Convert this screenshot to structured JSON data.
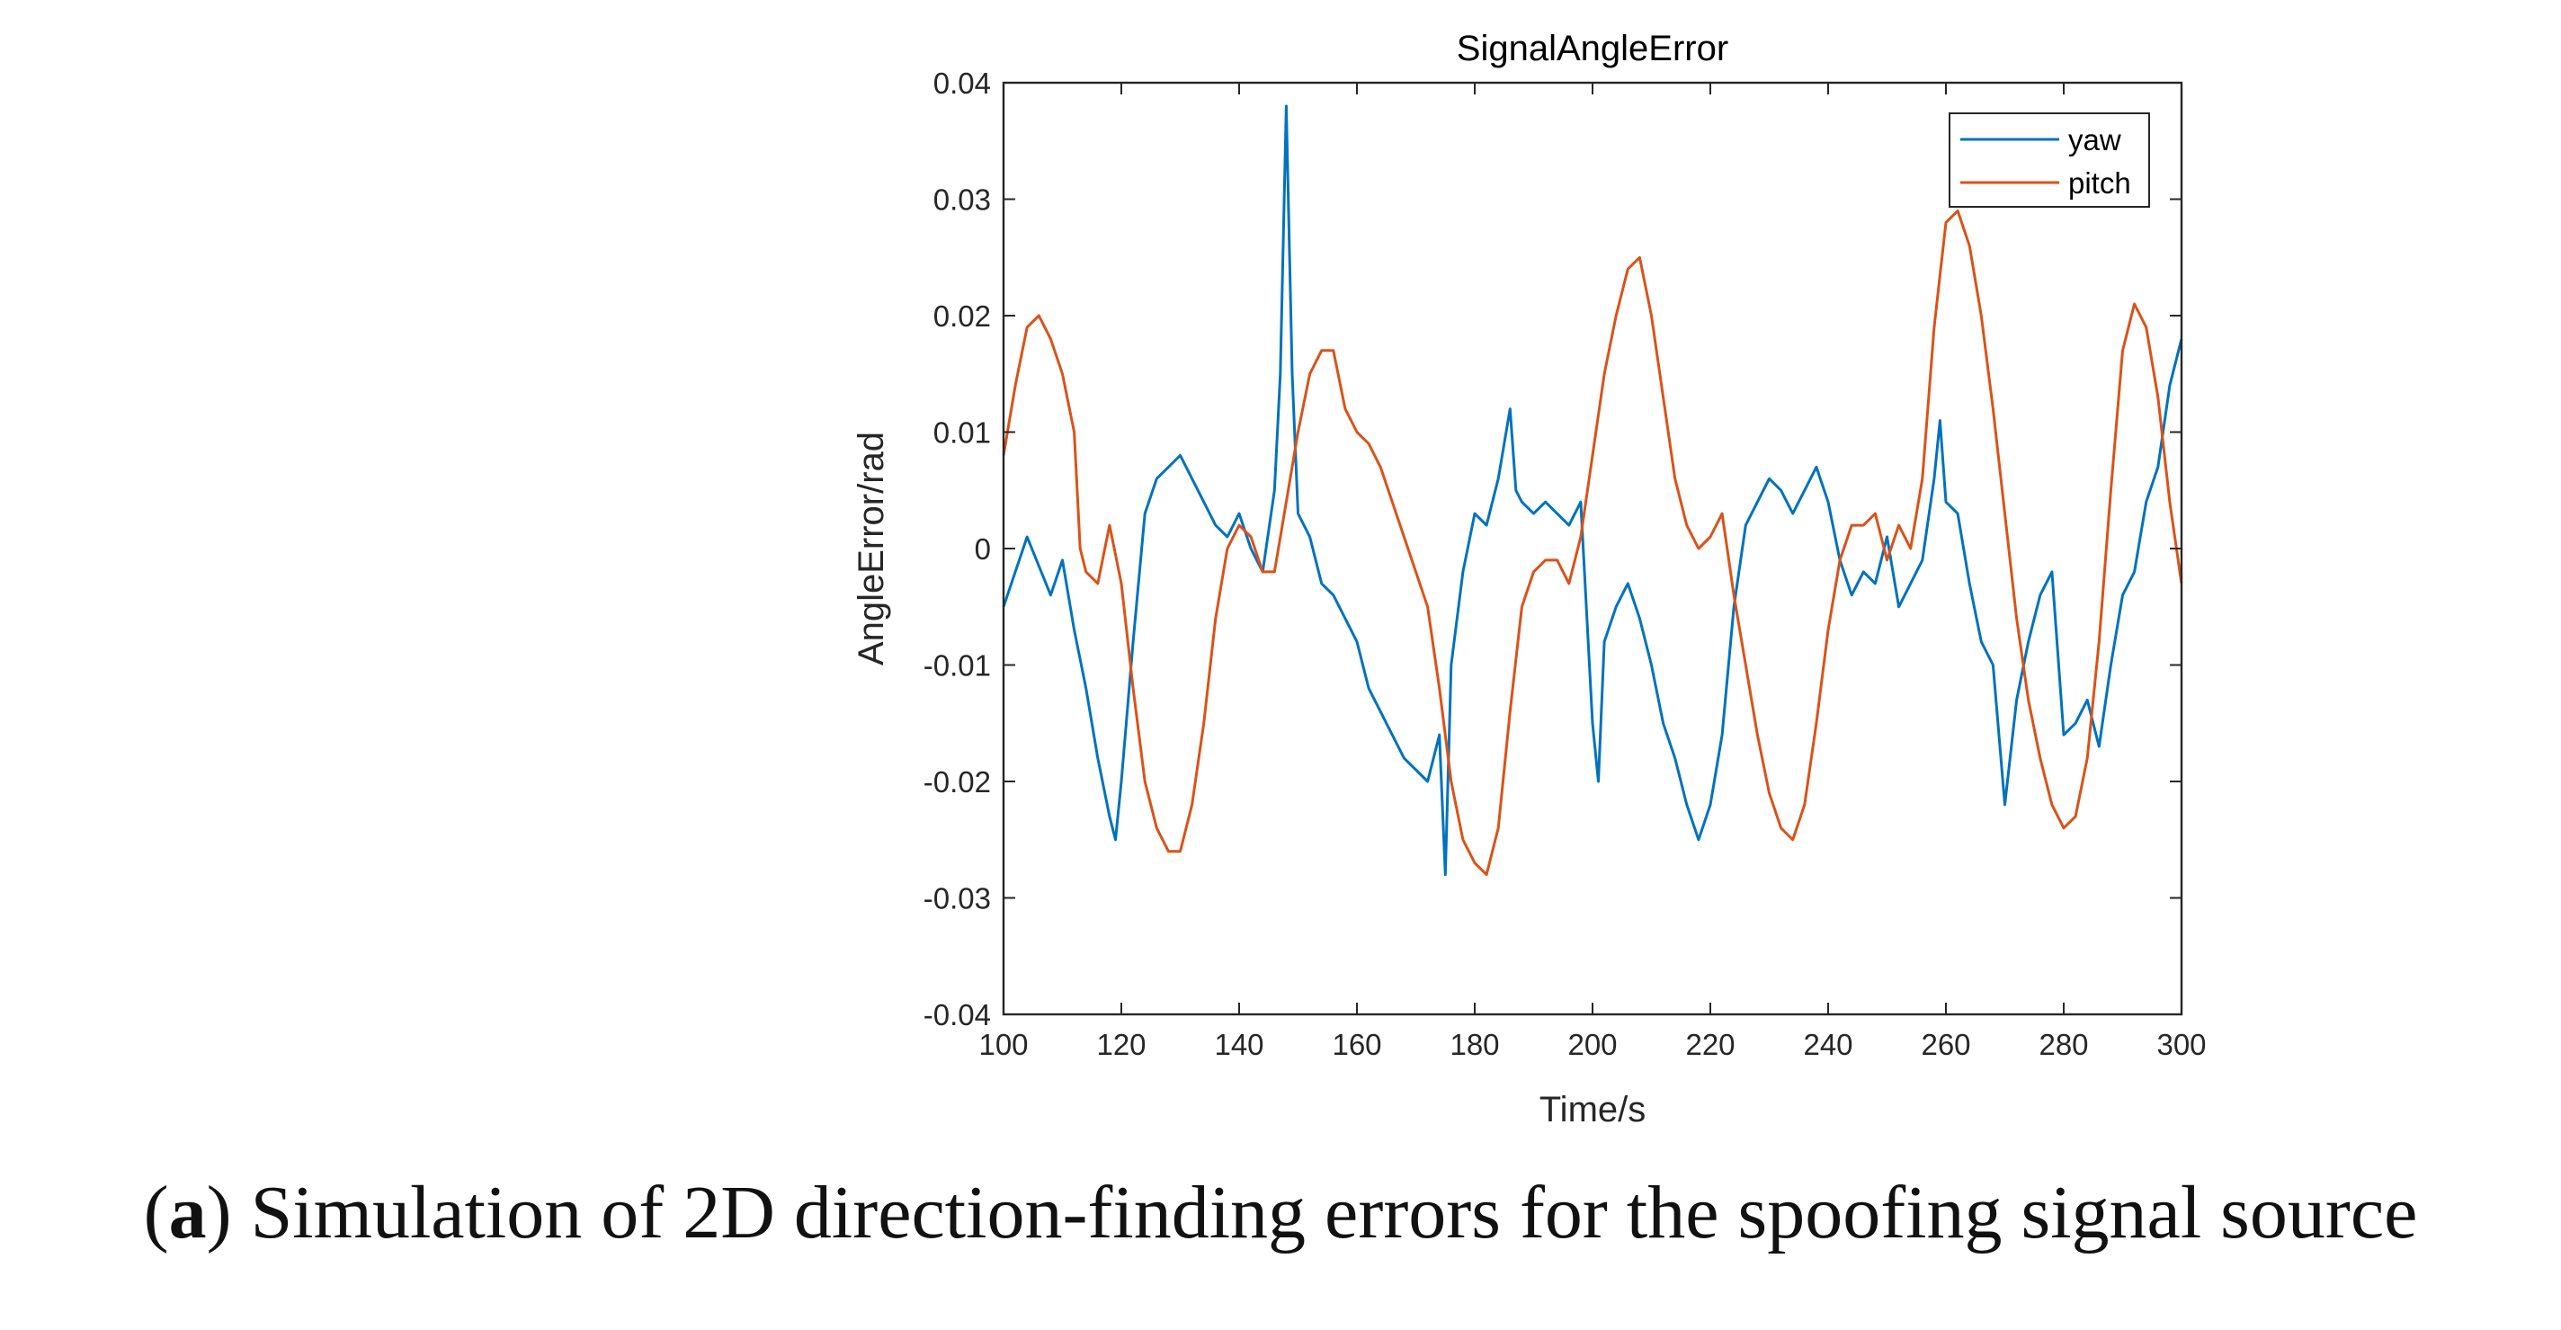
{
  "chart_data": {
    "type": "line",
    "title": "SignalAngleError",
    "xlabel": "Time/s",
    "ylabel": "AngleError/rad",
    "xlim": [
      100,
      300
    ],
    "ylim": [
      -0.04,
      0.04
    ],
    "x_ticks": [
      100,
      120,
      140,
      160,
      180,
      200,
      220,
      240,
      260,
      280,
      300
    ],
    "y_ticks": [
      -0.04,
      -0.03,
      -0.02,
      -0.01,
      0,
      0.01,
      0.02,
      0.03,
      0.04
    ],
    "x_tick_labels": [
      "100",
      "120",
      "140",
      "160",
      "180",
      "200",
      "220",
      "240",
      "260",
      "280",
      "300"
    ],
    "y_tick_labels": [
      "-0.04",
      "-0.03",
      "-0.02",
      "-0.01",
      "0",
      "0.01",
      "0.02",
      "0.03",
      "0.04"
    ],
    "grid": false,
    "legend_position": "top-right",
    "series": [
      {
        "name": "yaw",
        "color": "#0072BD",
        "x": [
          100,
          104,
          108,
          110,
          112,
          114,
          116,
          118,
          119,
          120,
          122,
          124,
          126,
          128,
          130,
          132,
          134,
          136,
          138,
          140,
          142,
          144,
          146,
          147,
          148,
          149,
          150,
          152,
          154,
          156,
          158,
          160,
          162,
          164,
          166,
          168,
          170,
          172,
          174,
          175,
          176,
          178,
          180,
          182,
          184,
          186,
          187,
          188,
          190,
          192,
          194,
          196,
          198,
          200,
          201,
          202,
          204,
          206,
          208,
          210,
          212,
          214,
          216,
          218,
          220,
          222,
          224,
          226,
          228,
          230,
          232,
          234,
          236,
          238,
          240,
          242,
          244,
          246,
          248,
          250,
          252,
          254,
          256,
          258,
          259,
          260,
          262,
          264,
          266,
          268,
          270,
          272,
          274,
          276,
          278,
          280,
          282,
          284,
          286,
          288,
          290,
          292,
          294,
          296,
          298,
          300
        ],
        "y": [
          -0.005,
          0.001,
          -0.004,
          -0.001,
          -0.007,
          -0.012,
          -0.018,
          -0.023,
          -0.025,
          -0.02,
          -0.008,
          0.003,
          0.006,
          0.007,
          0.008,
          0.006,
          0.004,
          0.002,
          0.001,
          0.003,
          0.0,
          -0.002,
          0.005,
          0.015,
          0.038,
          0.015,
          0.003,
          0.001,
          -0.003,
          -0.004,
          -0.006,
          -0.008,
          -0.012,
          -0.014,
          -0.016,
          -0.018,
          -0.019,
          -0.02,
          -0.016,
          -0.028,
          -0.01,
          -0.002,
          0.003,
          0.002,
          0.006,
          0.012,
          0.005,
          0.004,
          0.003,
          0.004,
          0.003,
          0.002,
          0.004,
          -0.015,
          -0.02,
          -0.008,
          -0.005,
          -0.003,
          -0.006,
          -0.01,
          -0.015,
          -0.018,
          -0.022,
          -0.025,
          -0.022,
          -0.016,
          -0.005,
          0.002,
          0.004,
          0.006,
          0.005,
          0.003,
          0.005,
          0.007,
          0.004,
          -0.001,
          -0.004,
          -0.002,
          -0.003,
          0.001,
          -0.005,
          -0.003,
          -0.001,
          0.006,
          0.011,
          0.004,
          0.003,
          -0.003,
          -0.008,
          -0.01,
          -0.022,
          -0.013,
          -0.008,
          -0.004,
          -0.002,
          -0.016,
          -0.015,
          -0.013,
          -0.017,
          -0.01,
          -0.004,
          -0.002,
          0.004,
          0.007,
          0.014,
          0.018
        ]
      },
      {
        "name": "pitch",
        "color": "#D95319",
        "x": [
          100,
          102,
          104,
          106,
          108,
          110,
          112,
          113,
          114,
          116,
          118,
          120,
          122,
          124,
          126,
          128,
          130,
          132,
          134,
          136,
          138,
          140,
          142,
          144,
          146,
          148,
          150,
          152,
          154,
          156,
          158,
          160,
          162,
          164,
          166,
          168,
          170,
          172,
          174,
          176,
          178,
          180,
          182,
          184,
          186,
          188,
          190,
          192,
          194,
          196,
          198,
          200,
          202,
          204,
          206,
          208,
          210,
          212,
          214,
          216,
          218,
          220,
          222,
          224,
          226,
          228,
          230,
          232,
          234,
          236,
          238,
          240,
          242,
          244,
          246,
          248,
          250,
          252,
          254,
          256,
          258,
          260,
          262,
          264,
          266,
          268,
          270,
          272,
          274,
          276,
          278,
          280,
          282,
          284,
          286,
          288,
          290,
          292,
          294,
          296,
          298,
          300
        ],
        "y": [
          0.008,
          0.014,
          0.019,
          0.02,
          0.018,
          0.015,
          0.01,
          0.0,
          -0.002,
          -0.003,
          0.002,
          -0.003,
          -0.012,
          -0.02,
          -0.024,
          -0.026,
          -0.026,
          -0.022,
          -0.015,
          -0.006,
          0.0,
          0.002,
          0.001,
          -0.002,
          -0.002,
          0.004,
          0.01,
          0.015,
          0.017,
          0.017,
          0.012,
          0.01,
          0.009,
          0.007,
          0.004,
          0.001,
          -0.002,
          -0.005,
          -0.012,
          -0.02,
          -0.025,
          -0.027,
          -0.028,
          -0.024,
          -0.014,
          -0.005,
          -0.002,
          -0.001,
          -0.001,
          -0.003,
          0.001,
          0.008,
          0.015,
          0.02,
          0.024,
          0.025,
          0.02,
          0.013,
          0.006,
          0.002,
          0.0,
          0.001,
          0.003,
          -0.004,
          -0.01,
          -0.016,
          -0.021,
          -0.024,
          -0.025,
          -0.022,
          -0.015,
          -0.007,
          -0.001,
          0.002,
          0.002,
          0.003,
          -0.001,
          0.002,
          0.0,
          0.006,
          0.019,
          0.028,
          0.029,
          0.026,
          0.02,
          0.012,
          0.003,
          -0.006,
          -0.013,
          -0.018,
          -0.022,
          -0.024,
          -0.023,
          -0.018,
          -0.008,
          0.005,
          0.017,
          0.021,
          0.019,
          0.013,
          0.004,
          -0.003
        ]
      }
    ]
  },
  "caption": {
    "label": "a",
    "text": "Simulation of 2D direction-finding errors for the spoofing signal source"
  }
}
